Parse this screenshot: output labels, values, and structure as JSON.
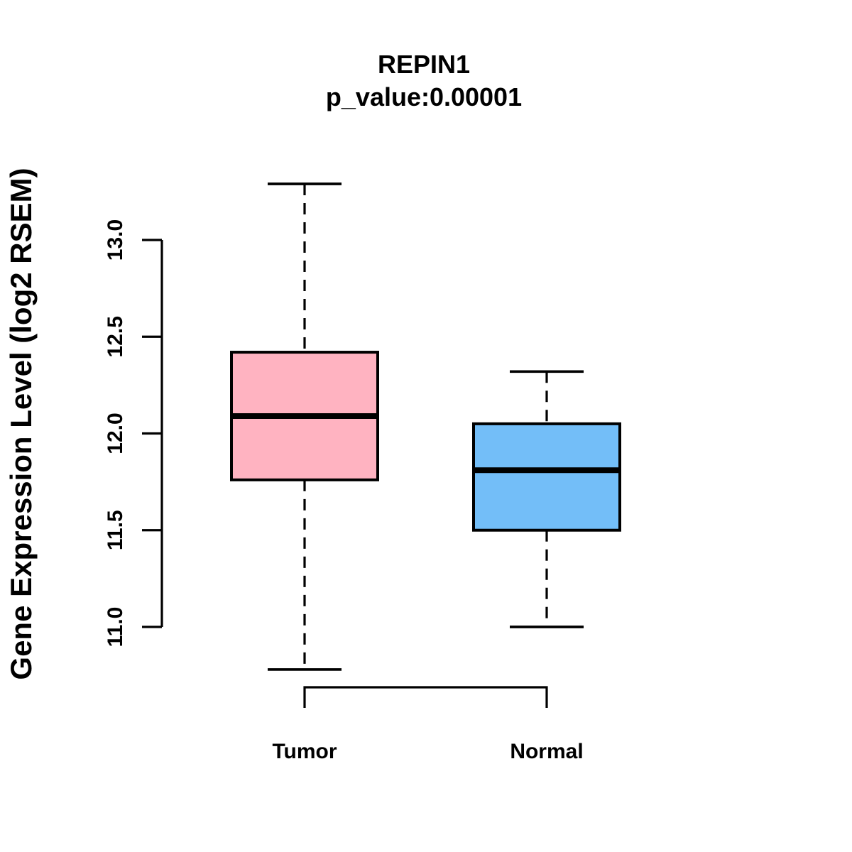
{
  "page": {
    "background_color": "#FFFFFF",
    "text_color": "#000000"
  },
  "chart_data": {
    "type": "boxplot",
    "title": "REPIN1",
    "subtitle": "p_value:0.00001",
    "p_value": "0.00001",
    "ylabel": "Gene Expression Level (log2 RSEM)",
    "xlabel": "",
    "axis_range": [
      11.0,
      13.0
    ],
    "yticks": [
      11.0,
      11.5,
      12.0,
      12.5,
      13.0
    ],
    "ytick_labels": [
      "11.0",
      "11.5",
      "12.0",
      "12.5",
      "13.0"
    ],
    "categories": [
      "Tumor",
      "Normal"
    ],
    "grid": false,
    "legend": null,
    "series": [
      {
        "name": "Tumor",
        "color": "#FFB3C1",
        "lower_whisker": 10.78,
        "q1": 11.76,
        "median": 12.09,
        "q3": 12.42,
        "upper_whisker": 13.29
      },
      {
        "name": "Normal",
        "color": "#73BEF8",
        "lower_whisker": 11.0,
        "q1": 11.5,
        "median": 11.81,
        "q3": 12.05,
        "upper_whisker": 12.32
      }
    ],
    "stroke_color": "#000000"
  }
}
